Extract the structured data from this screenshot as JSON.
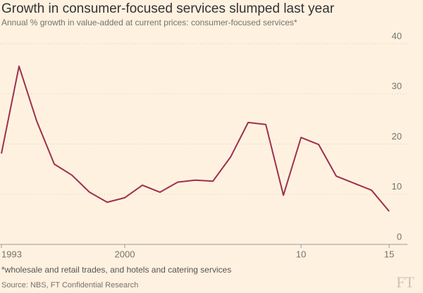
{
  "chart_data": {
    "type": "line",
    "title": "Growth in consumer-focused services slumped last year",
    "subtitle": "Annual % growth in value-added at current prices: consumer-focused services*",
    "footnote": "*wholesale and retail trades, and hotels and catering services",
    "source": "Source: NBS, FT Confidential Research",
    "logo": "FT",
    "x": [
      1993,
      1994,
      1995,
      1996,
      1997,
      1998,
      1999,
      2000,
      2001,
      2002,
      2003,
      2004,
      2005,
      2006,
      2007,
      2008,
      2009,
      2010,
      2011,
      2012,
      2013,
      2014,
      2015
    ],
    "series": [
      {
        "color": "#9e2f50",
        "values": [
          18.1,
          35.5,
          24.6,
          16.0,
          13.8,
          10.4,
          8.4,
          9.3,
          11.8,
          10.4,
          12.4,
          12.8,
          12.6,
          17.4,
          24.3,
          23.9,
          9.8,
          21.3,
          19.9,
          13.6,
          12.2,
          10.8,
          6.6
        ]
      }
    ],
    "xlim": [
      1993,
      2015
    ],
    "xticks": [
      1993,
      2000,
      {
        "value": 2010,
        "label": "10"
      },
      {
        "value": 2015,
        "label": "15"
      }
    ],
    "ylim": [
      0,
      40
    ],
    "yticks": [
      0,
      10,
      20,
      30,
      40
    ],
    "grid": true
  }
}
